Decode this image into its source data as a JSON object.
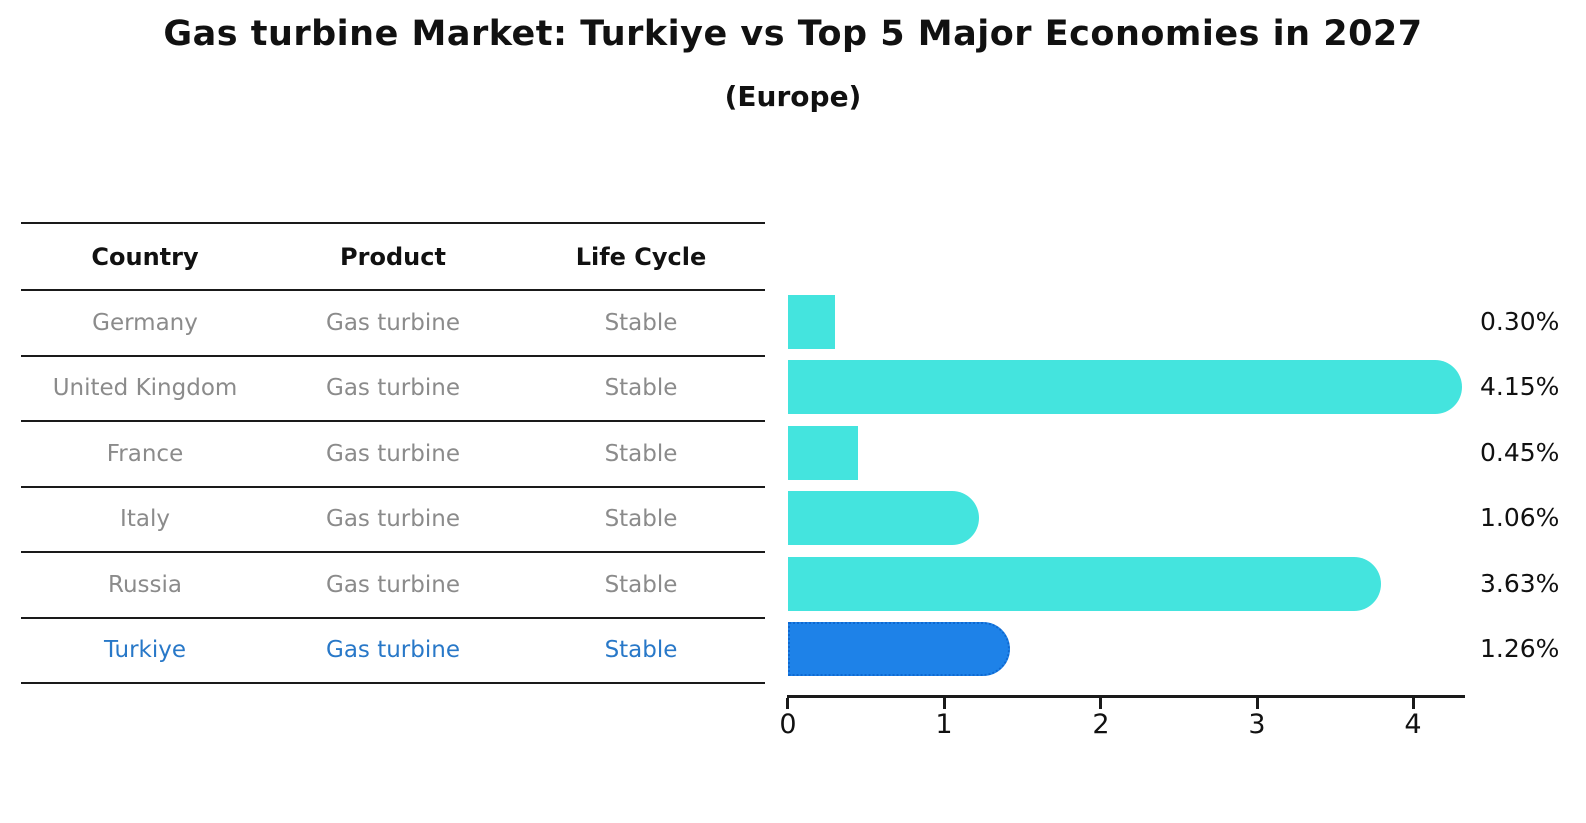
{
  "title": "Gas turbine Market: Turkiye vs Top 5 Major Economies in 2027",
  "subtitle": "(Europe)",
  "table": {
    "headers": [
      "Country",
      "Product",
      "Life Cycle"
    ],
    "rows": [
      {
        "country": "Germany",
        "product": "Gas turbine",
        "life_cycle": "Stable",
        "highlighted": false
      },
      {
        "country": "United Kingdom",
        "product": "Gas turbine",
        "life_cycle": "Stable",
        "highlighted": false
      },
      {
        "country": "France",
        "product": "Gas turbine",
        "life_cycle": "Stable",
        "highlighted": false
      },
      {
        "country": "Italy",
        "product": "Gas turbine",
        "life_cycle": "Stable",
        "highlighted": false
      },
      {
        "country": "Russia",
        "product": "Gas turbine",
        "life_cycle": "Stable",
        "highlighted": false
      },
      {
        "country": "Turkiye",
        "product": "Gas turbine",
        "life_cycle": "Stable",
        "highlighted": true
      }
    ]
  },
  "chart_data": {
    "type": "bar",
    "orientation": "horizontal",
    "title": "Gas turbine Market: Turkiye vs Top 5 Major Economies in 2027",
    "subtitle": "(Europe)",
    "categories": [
      "Germany",
      "United Kingdom",
      "France",
      "Italy",
      "Russia",
      "Turkiye"
    ],
    "values": [
      0.3,
      4.15,
      0.45,
      1.06,
      3.63,
      1.26
    ],
    "value_labels": [
      "0.30%",
      "4.15%",
      "0.45%",
      "1.06%",
      "3.63%",
      "1.26%"
    ],
    "xticks": [
      "0",
      "1",
      "2",
      "3",
      "4"
    ],
    "xlim": [
      0,
      4.33
    ],
    "grid": false,
    "legend": false,
    "bar_color": "#44e4de",
    "highlight_color": "#1e82e8",
    "highlight_border_color": "#0e68d0",
    "highlight_index": 5,
    "highlight_text_color": "#2878c8"
  }
}
